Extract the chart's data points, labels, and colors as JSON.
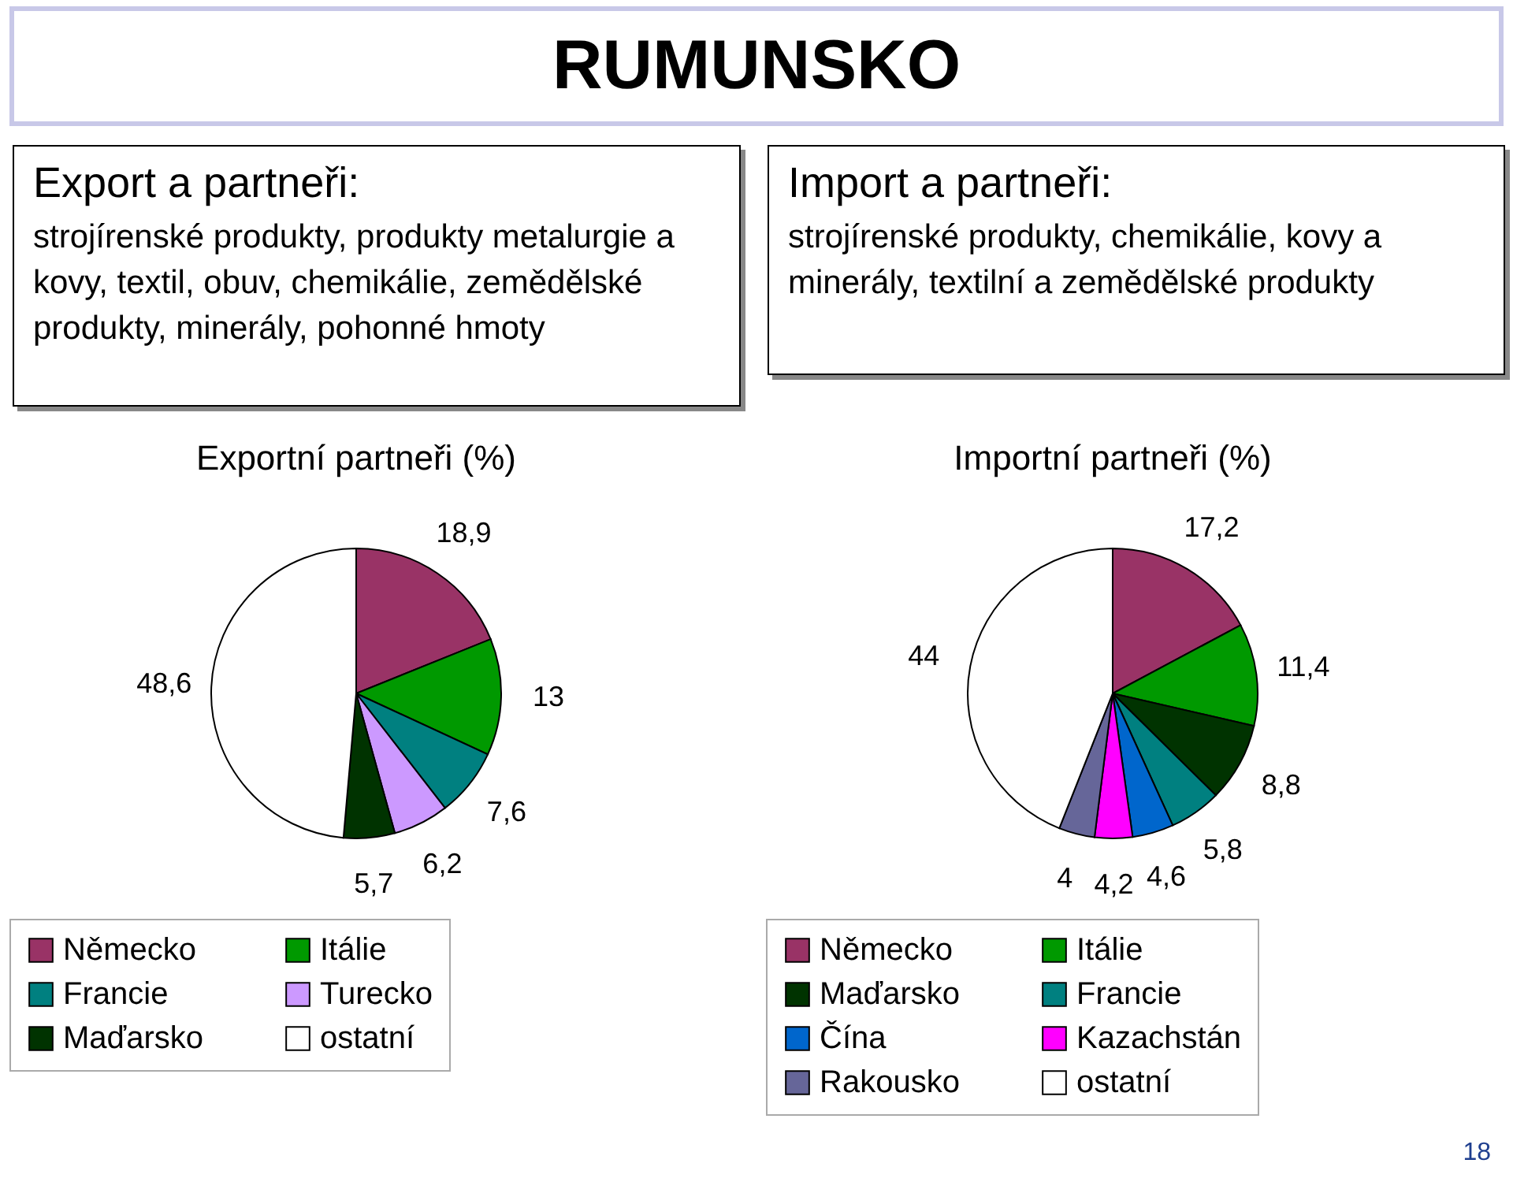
{
  "chart_data": [
    {
      "type": "other",
      "title": "RUMUNSKO",
      "annotations": [
        "18"
      ]
    },
    {
      "type": "other",
      "title": "Export a partneři:",
      "annotations": [
        "strojírenské produkty, produkty metalurgie a kovy, textil, obuv, chemikálie, zemědělské produkty, minerály, pohonné hmoty"
      ]
    },
    {
      "type": "other",
      "title": "Import a partneři:",
      "annotations": [
        "strojírenské produkty, chemikálie, kovy a minerály, textilní a zemědělské produkty"
      ]
    },
    {
      "type": "pie",
      "title": "Exportní partneři (%)",
      "categories": [
        "Německo",
        "Itálie",
        "Francie",
        "Turecko",
        "Maďarsko",
        "ostatní"
      ],
      "values": [
        18.9,
        13,
        7.6,
        6.2,
        5.7,
        48.6
      ],
      "value_labels": [
        "18,9",
        "13",
        "7,6",
        "6,2",
        "5,7",
        "48,6"
      ],
      "colors": [
        "#993366",
        "#009900",
        "#008080",
        "#cc99ff",
        "#003300",
        "#ffffff"
      ],
      "legend": "bottom"
    },
    {
      "type": "pie",
      "title": "Importní partneři (%)",
      "categories": [
        "Německo",
        "Itálie",
        "Maďarsko",
        "Francie",
        "Čína",
        "Kazachstán",
        "Rakousko",
        "ostatní"
      ],
      "values": [
        17.2,
        11.4,
        8.8,
        5.8,
        4.6,
        4.2,
        4,
        44
      ],
      "value_labels": [
        "17,2",
        "11,4",
        "8,8",
        "5,8",
        "4,6",
        "4,2",
        "4",
        "44"
      ],
      "colors": [
        "#993366",
        "#009900",
        "#003300",
        "#008080",
        "#0066cc",
        "#ff00ff",
        "#666699",
        "#ffffff"
      ],
      "legend": "bottom"
    }
  ]
}
